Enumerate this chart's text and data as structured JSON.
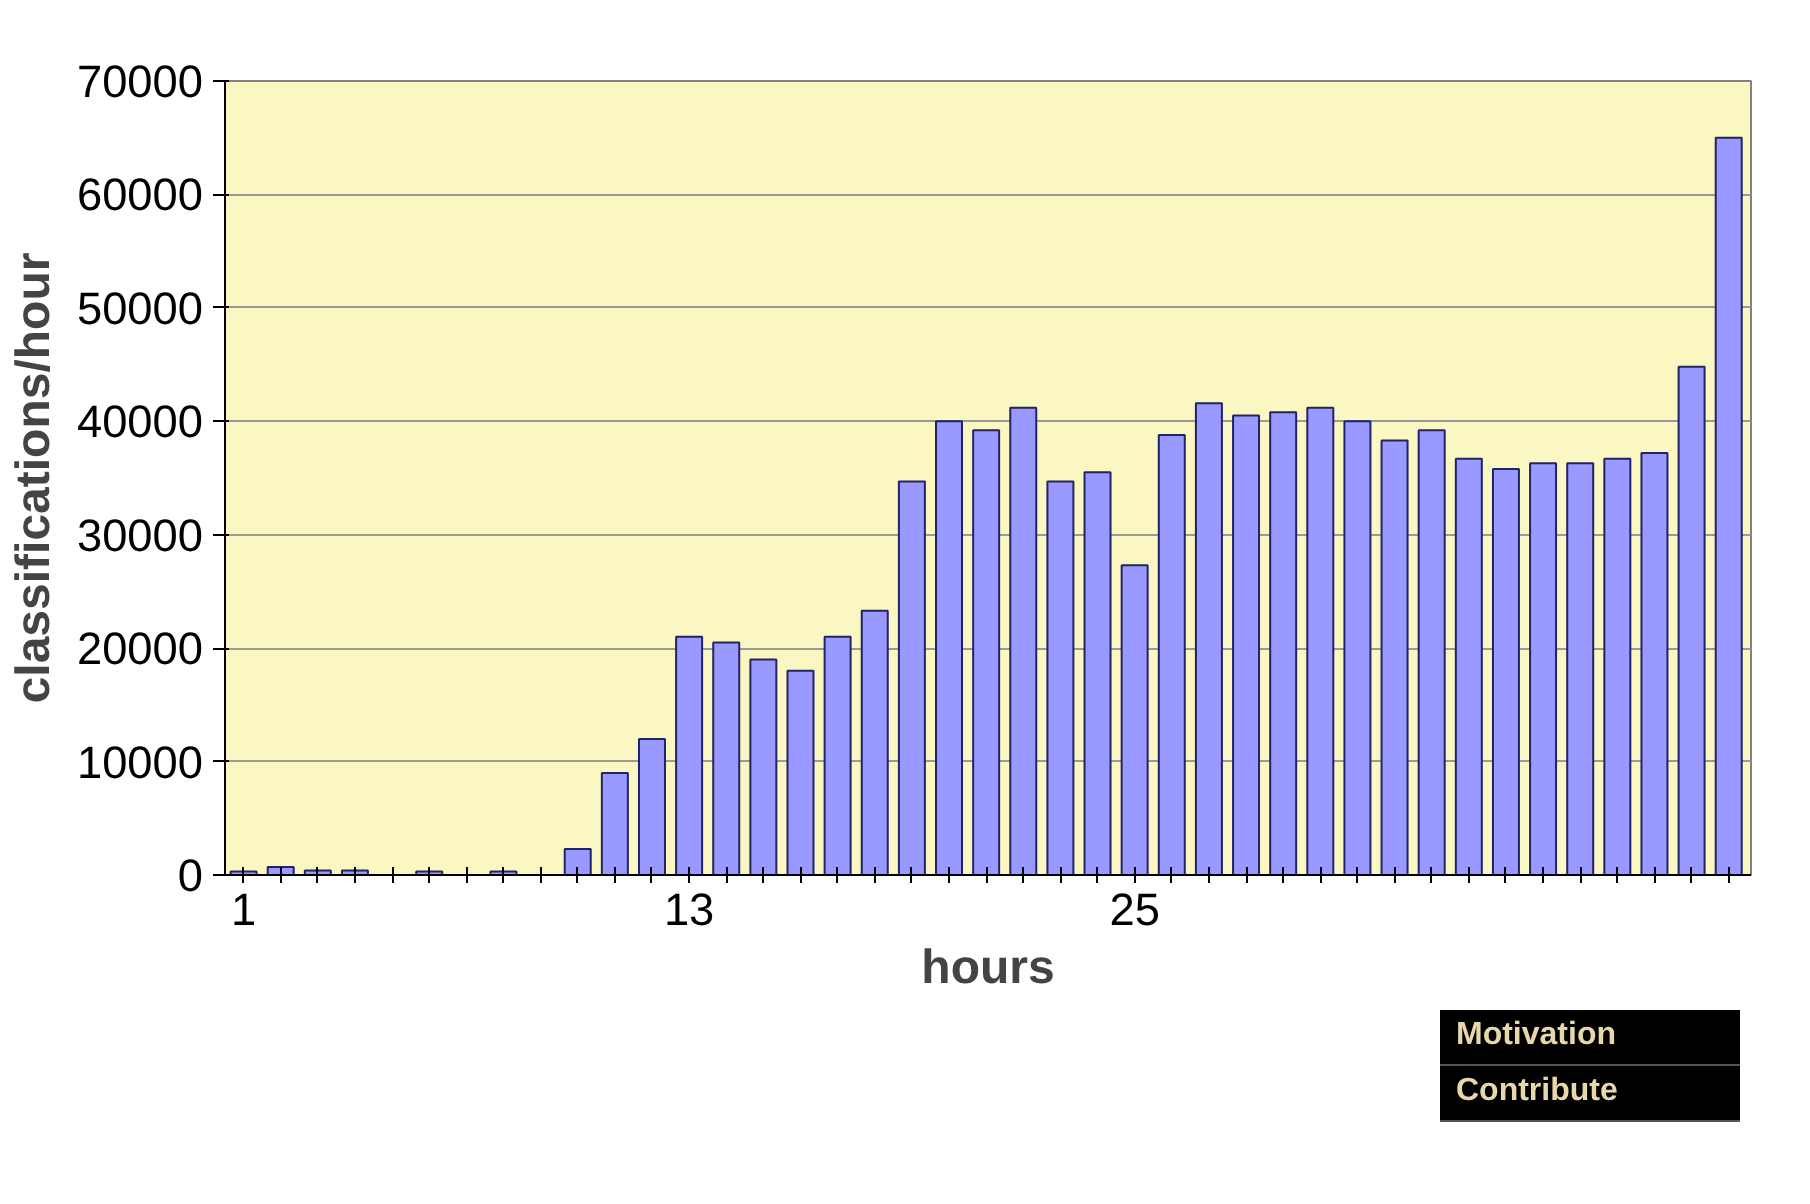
{
  "chart_data": {
    "type": "bar",
    "xlabel": "hours",
    "ylabel": "classifications/hour",
    "categories": [
      "1",
      null,
      null,
      null,
      null,
      null,
      null,
      null,
      null,
      null,
      null,
      null,
      "13",
      null,
      null,
      null,
      null,
      null,
      null,
      null,
      null,
      null,
      null,
      null,
      "25",
      null,
      null,
      null,
      null,
      null,
      null,
      null,
      null,
      null,
      null,
      null,
      null,
      null,
      null,
      null,
      null
    ],
    "series": [
      {
        "color": "#9999ff",
        "values": [
          300,
          700,
          400,
          400,
          0,
          300,
          0,
          300,
          0,
          2300,
          9000,
          12000,
          21000,
          20500,
          19000,
          18000,
          21000,
          23300,
          34700,
          40000,
          39200,
          41200,
          34700,
          35500,
          27300,
          38800,
          41600,
          40500,
          40800,
          41200,
          40000,
          38300,
          39200,
          36700,
          35800,
          36300,
          36300,
          36700,
          37200,
          44800,
          65000
        ]
      }
    ],
    "ylim": [
      0,
      70000
    ],
    "yticks": [
      0,
      10000,
      20000,
      30000,
      40000,
      50000,
      60000,
      70000
    ],
    "grid": "y",
    "annotations": [
      "Motivation",
      "Contribute"
    ]
  }
}
